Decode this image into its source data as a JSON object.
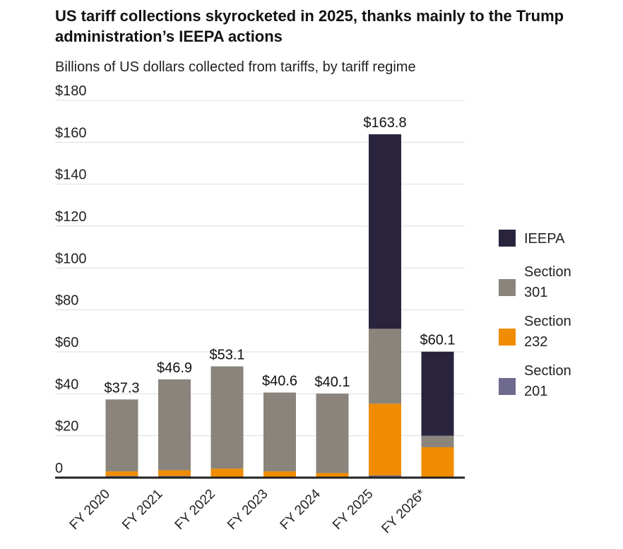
{
  "title": "US tariff collections skyrocketed in 2025, thanks mainly to the Trump administration’s IEEPA actions",
  "subtitle": "Billions of US dollars collected from tariffs, by tariff regime",
  "chart_data": {
    "type": "bar",
    "stacked": true,
    "categories": [
      "FY 2020",
      "FY 2021",
      "FY 2022",
      "FY 2023",
      "FY 2024",
      "FY 2025",
      "FY 2026*"
    ],
    "series": [
      {
        "name": "Section 201",
        "color": "#6e6a8e",
        "values": [
          0.8,
          0.8,
          0.5,
          0.3,
          0.3,
          1.0,
          0.1
        ]
      },
      {
        "name": "Section 232",
        "color": "#f08c00",
        "values": [
          2.2,
          2.7,
          3.8,
          2.7,
          1.9,
          34.3,
          14.4
        ]
      },
      {
        "name": "Section 301",
        "color": "#8a847c",
        "values": [
          34.3,
          43.4,
          48.8,
          37.6,
          37.9,
          35.7,
          5.5
        ]
      },
      {
        "name": "IEEPA",
        "color": "#29233d",
        "values": [
          0,
          0,
          0,
          0,
          0,
          92.8,
          40.1
        ]
      }
    ],
    "totals": [
      "$37.3",
      "$46.9",
      "$53.1",
      "$40.6",
      "$40.1",
      "$163.8",
      "$60.1"
    ],
    "y_tick_labels": [
      "0",
      "$20",
      "$40",
      "$60",
      "$80",
      "$100",
      "$120",
      "$140",
      "$160",
      "$180"
    ],
    "ylim": [
      0,
      180
    ],
    "yticks": [
      0,
      20,
      40,
      60,
      80,
      100,
      120,
      140,
      160,
      180
    ],
    "grid": true,
    "legend": {
      "position": "right",
      "entries": [
        {
          "label": [
            "IEEPA"
          ],
          "color": "#29233d"
        },
        {
          "label": [
            "Section",
            "301"
          ],
          "color": "#8a847c"
        },
        {
          "label": [
            "Section",
            "232"
          ],
          "color": "#f08c00"
        },
        {
          "label": [
            "Section",
            "201"
          ],
          "color": "#6e6a8e"
        }
      ]
    }
  }
}
